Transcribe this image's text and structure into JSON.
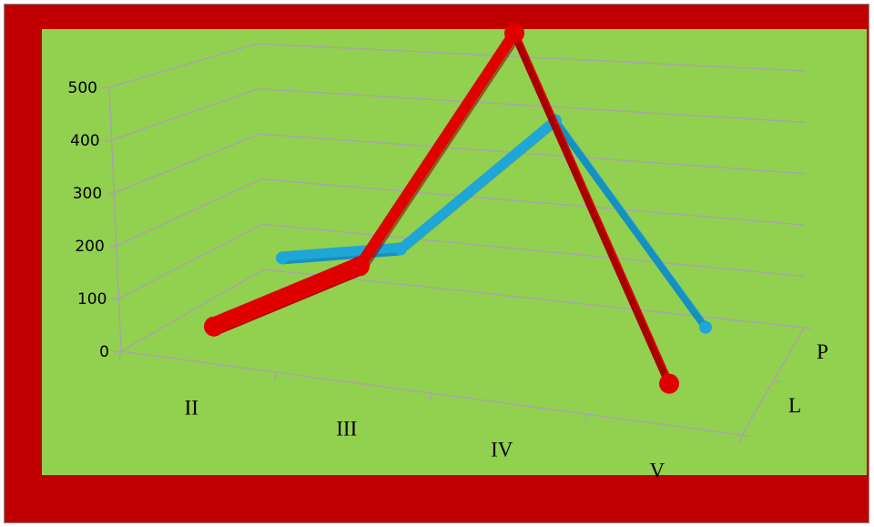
{
  "chart_data": {
    "type": "line",
    "variant": "3d-line",
    "title": "",
    "xlabel": "",
    "ylabel": "",
    "categories": [
      "II",
      "III",
      "IV",
      "V"
    ],
    "series": [
      {
        "name": "P",
        "values": [
          80,
          75,
          280,
          20
        ],
        "color": "#1fa6d8"
      },
      {
        "name": "L",
        "values": [
          15,
          80,
          480,
          20
        ],
        "color": "#e00000"
      }
    ],
    "y_ticks": [
      "0",
      "100",
      "200",
      "300",
      "400",
      "500"
    ],
    "ylim": [
      0,
      500
    ],
    "grid": true,
    "legend": "none",
    "colors": {
      "frame": "#c00000",
      "plot_background": "#92d050",
      "gridline": "#a6a6a6"
    }
  }
}
